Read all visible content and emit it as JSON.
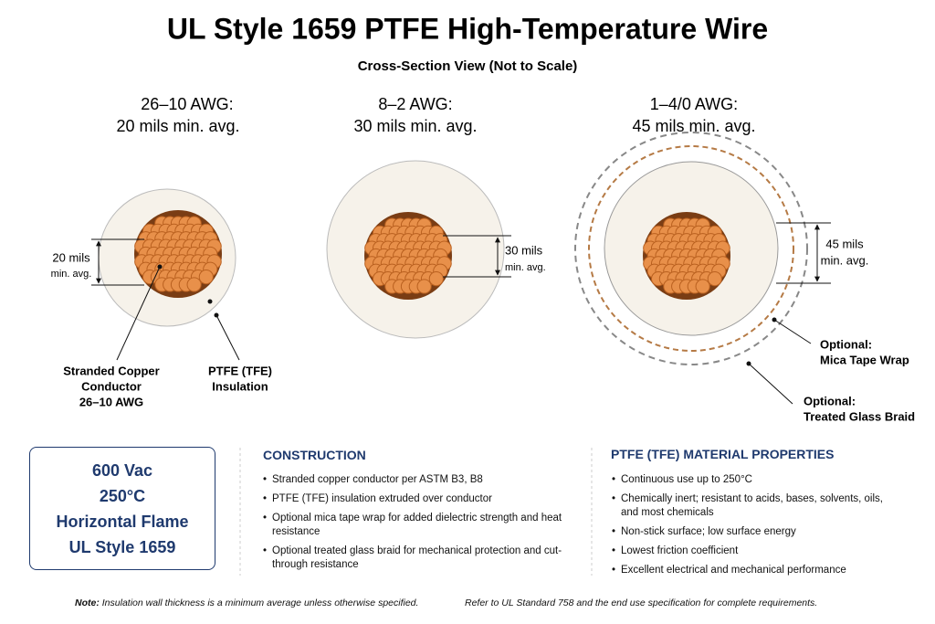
{
  "title": "UL Style 1659 PTFE High-Temperature Wire",
  "subtitle": "Cross-Section View (Not to Scale)",
  "sections": [
    {
      "heading": [
        "26–10 AWG:",
        "20 mils min. avg."
      ],
      "dimension": [
        "20 mils",
        "min. avg."
      ]
    },
    {
      "heading": [
        "8–2 AWG:",
        "30 mils min. avg."
      ],
      "dimension": [
        "30 mils",
        "min. avg."
      ]
    },
    {
      "heading": [
        "1–4/0 AWG:",
        "45 mils min. avg."
      ],
      "dimension": [
        "45 mils",
        "min. avg."
      ]
    }
  ],
  "callouts": [
    [
      "Stranded Copper",
      "Conductor",
      "26–10 AWG"
    ],
    [
      "PTFE (TFE)",
      "Insulation"
    ],
    [
      "Optional:",
      "Mica Tape Wrap"
    ],
    [
      "Optional:",
      "Treated Glass Braid"
    ]
  ],
  "ratings": [
    "600 Vac",
    "250°C",
    "Horizontal Flame",
    "UL Style 1659"
  ],
  "construction": {
    "title": "CONSTRUCTION",
    "items": [
      "Stranded copper conductor per ASTM B3, B8",
      "PTFE (TFE) insulation extruded over conductor",
      "Optional mica tape wrap for added dielectric strength and heat resistance",
      "Optional treated glass braid for mechanical protection and cut-through resistance"
    ]
  },
  "properties": {
    "title": "PTFE (TFE) MATERIAL PROPERTIES",
    "items": [
      "Continuous use up to 250°C",
      "Chemically inert; resistant to acids, bases, solvents, oils, and most chemicals",
      "Non-stick surface; low surface energy",
      "Lowest friction coefficient",
      "Excellent electrical and mechanical performance"
    ]
  },
  "note": {
    "label": "Note:",
    "text": "Insulation wall thickness is a minimum average unless otherwise specified.",
    "reference": "Refer to UL Standard 758 and the end use specification for complete requirements."
  }
}
